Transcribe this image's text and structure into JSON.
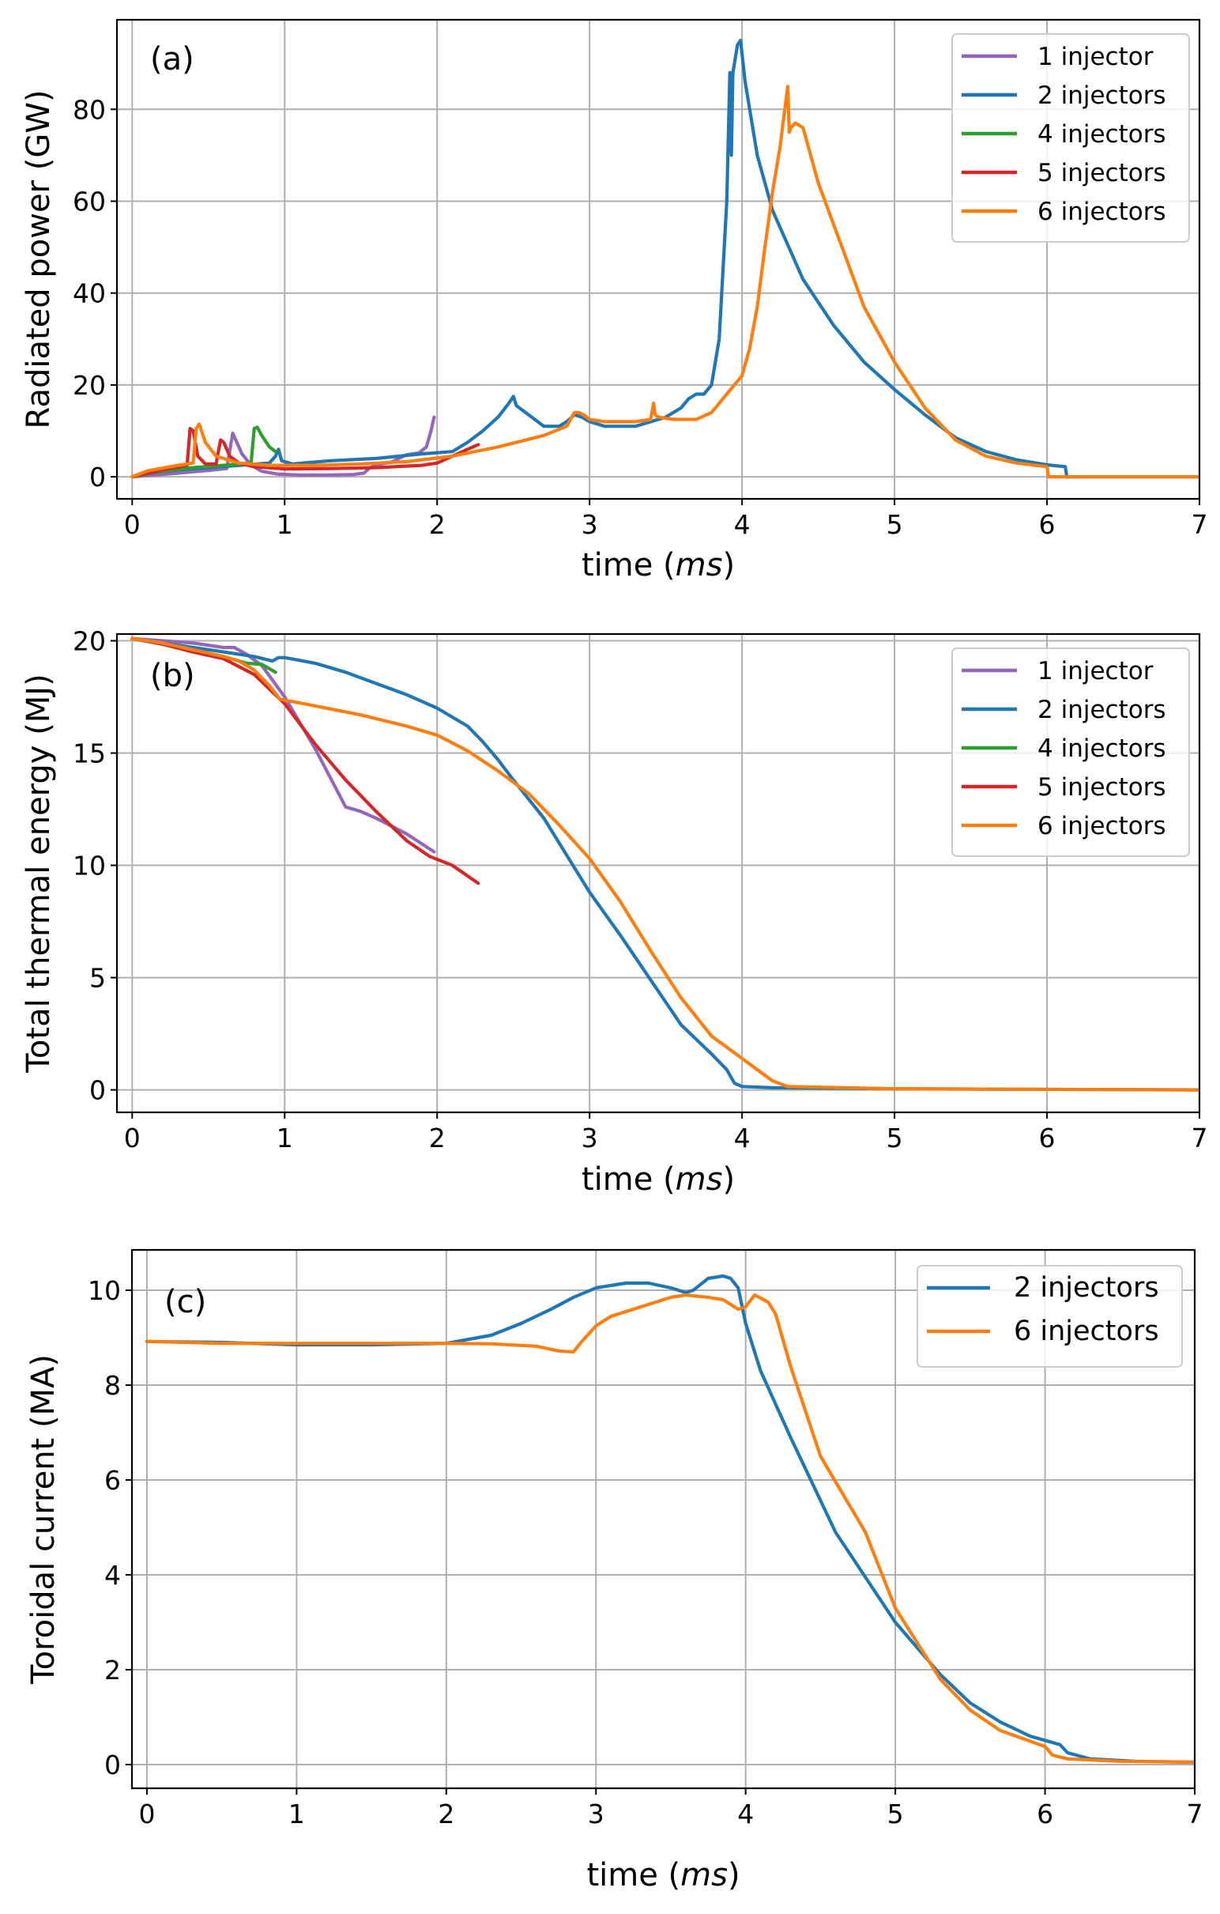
{
  "figure": {
    "panels": [
      "a",
      "b",
      "c"
    ]
  },
  "chart_data": [
    {
      "id": "a",
      "type": "line",
      "panel_tag": "(a)",
      "title": "",
      "xlabel": "time (ms)",
      "xlabel_parts": {
        "pre": "time (",
        "italic": "ms",
        "post": ")"
      },
      "ylabel": "Radiated power (GW)",
      "xlim": [
        -0.1,
        7
      ],
      "ylim": [
        -4.8,
        99.5
      ],
      "xticks": [
        0,
        1,
        2,
        3,
        4,
        5,
        6,
        7
      ],
      "yticks": [
        0,
        20,
        40,
        60,
        80
      ],
      "grid": true,
      "legend_position": "top-right",
      "series": [
        {
          "name": "1 injector",
          "color": "#9467bd",
          "x": [
            0,
            0.1,
            0.3,
            0.5,
            0.62,
            0.66,
            0.68,
            0.72,
            0.78,
            0.85,
            0.95,
            1.1,
            1.3,
            1.45,
            1.52,
            1.56,
            1.6,
            1.7,
            1.8,
            1.88,
            1.93,
            1.96,
            1.98
          ],
          "y": [
            0,
            0.3,
            0.8,
            1.4,
            1.8,
            9.5,
            8,
            5,
            2.5,
            1.2,
            0.6,
            0.4,
            0.4,
            0.5,
            0.8,
            2,
            2.6,
            3.2,
            4.8,
            5.2,
            6.5,
            10,
            13
          ]
        },
        {
          "name": "2 injectors",
          "color": "#1f77b4",
          "x": [
            0,
            0.1,
            0.3,
            0.5,
            0.7,
            0.9,
            0.94,
            0.96,
            0.98,
            1.05,
            1.3,
            1.6,
            1.9,
            2.1,
            2.2,
            2.3,
            2.4,
            2.47,
            2.5,
            2.52,
            2.6,
            2.7,
            2.8,
            2.85,
            2.9,
            2.95,
            3.0,
            3.1,
            3.3,
            3.5,
            3.6,
            3.65,
            3.7,
            3.75,
            3.8,
            3.85,
            3.9,
            3.92,
            3.93,
            3.94,
            3.95,
            3.97,
            3.99,
            4.02,
            4.1,
            4.2,
            4.4,
            4.6,
            4.8,
            5.0,
            5.2,
            5.4,
            5.6,
            5.8,
            6.0,
            6.12,
            6.13,
            7.0
          ],
          "y": [
            0,
            0.8,
            1.5,
            2.0,
            2.5,
            3.0,
            4.5,
            6,
            3.5,
            2.8,
            3.5,
            4.0,
            5.0,
            5.5,
            7.5,
            10,
            13,
            16,
            17.5,
            15.5,
            13.5,
            11,
            11,
            12,
            13.5,
            13,
            12,
            11,
            11,
            13,
            15,
            17,
            18,
            18,
            20,
            30,
            60,
            88,
            70,
            88,
            90,
            94,
            95,
            86,
            70,
            58,
            43,
            33,
            25,
            19,
            13.5,
            8.5,
            5.5,
            3.7,
            2.6,
            2.2,
            0,
            0
          ]
        },
        {
          "name": "4 injectors",
          "color": "#2ca02c",
          "x": [
            0,
            0.2,
            0.4,
            0.6,
            0.78,
            0.8,
            0.82,
            0.85,
            0.9,
            0.94
          ],
          "y": [
            0,
            1.2,
            2.0,
            2.5,
            3.0,
            10.5,
            10.8,
            9,
            6.5,
            5.5
          ]
        },
        {
          "name": "5 injectors",
          "color": "#d62728",
          "x": [
            0,
            0.2,
            0.36,
            0.38,
            0.4,
            0.43,
            0.48,
            0.55,
            0.58,
            0.6,
            0.64,
            0.7,
            0.8,
            1.0,
            1.3,
            1.6,
            1.9,
            2.0,
            2.1,
            2.2,
            2.27
          ],
          "y": [
            0,
            1.5,
            2.5,
            10.5,
            10.0,
            4.5,
            2.8,
            2.8,
            8.0,
            7.5,
            4.5,
            3.0,
            2.2,
            1.7,
            1.8,
            2.0,
            2.5,
            3.0,
            4.5,
            6.0,
            7.0
          ]
        },
        {
          "name": "6 injectors",
          "color": "#ff7f0e",
          "x": [
            0,
            0.1,
            0.3,
            0.4,
            0.42,
            0.44,
            0.48,
            0.55,
            0.7,
            0.9,
            1.2,
            1.5,
            1.8,
            2.1,
            2.4,
            2.7,
            2.85,
            2.9,
            2.93,
            2.96,
            3.0,
            3.1,
            3.3,
            3.4,
            3.42,
            3.43,
            3.45,
            3.55,
            3.7,
            3.8,
            3.9,
            4.0,
            4.05,
            4.1,
            4.15,
            4.2,
            4.25,
            4.28,
            4.3,
            4.31,
            4.32,
            4.35,
            4.4,
            4.45,
            4.5,
            4.6,
            4.7,
            4.8,
            5.0,
            5.2,
            5.4,
            5.6,
            5.8,
            6.0,
            6.01,
            7.0
          ],
          "y": [
            0,
            1.3,
            2.5,
            3.0,
            10.5,
            11.5,
            7.5,
            4.5,
            3.0,
            2.5,
            2.5,
            2.8,
            3.3,
            4.5,
            6.5,
            9.0,
            11,
            14,
            14,
            13.5,
            12.5,
            12,
            12,
            12.5,
            16,
            13.5,
            13,
            12.5,
            12.5,
            14,
            18,
            22,
            28,
            37,
            50,
            62,
            72,
            80,
            85,
            75,
            76,
            77,
            76,
            70,
            64,
            55,
            46,
            37,
            25,
            15,
            8,
            4.5,
            3.0,
            2.2,
            0,
            0
          ]
        }
      ]
    },
    {
      "id": "b",
      "type": "line",
      "panel_tag": "(b)",
      "title": "",
      "xlabel": "time (ms)",
      "xlabel_parts": {
        "pre": "time (",
        "italic": "ms",
        "post": ")"
      },
      "ylabel": "Total thermal energy (MJ)",
      "xlim": [
        -0.1,
        7
      ],
      "ylim": [
        -1.0,
        20.3
      ],
      "xticks": [
        0,
        1,
        2,
        3,
        4,
        5,
        6,
        7
      ],
      "yticks": [
        0,
        5,
        10,
        15,
        20
      ],
      "grid": true,
      "legend_position": "top-right",
      "series": [
        {
          "name": "1 injector",
          "color": "#9467bd",
          "x": [
            0,
            0.2,
            0.4,
            0.6,
            0.67,
            0.75,
            0.85,
            1.0,
            1.2,
            1.4,
            1.5,
            1.6,
            1.8,
            1.98
          ],
          "y": [
            20.1,
            20.0,
            19.9,
            19.7,
            19.7,
            19.4,
            18.9,
            17.5,
            15.2,
            12.6,
            12.4,
            12.1,
            11.4,
            10.6
          ]
        },
        {
          "name": "2 injectors",
          "color": "#1f77b4",
          "x": [
            0,
            0.2,
            0.4,
            0.6,
            0.8,
            0.92,
            0.96,
            1.0,
            1.2,
            1.4,
            1.6,
            1.8,
            2.0,
            2.2,
            2.3,
            2.4,
            2.5,
            2.7,
            2.8,
            3.0,
            3.2,
            3.4,
            3.6,
            3.8,
            3.9,
            3.95,
            4.0,
            4.2,
            5.0,
            7.0
          ],
          "y": [
            20.1,
            19.9,
            19.7,
            19.5,
            19.3,
            19.1,
            19.25,
            19.25,
            19.0,
            18.6,
            18.1,
            17.6,
            17.0,
            16.2,
            15.5,
            14.7,
            13.8,
            12.1,
            11.0,
            8.8,
            6.9,
            4.9,
            2.9,
            1.6,
            0.9,
            0.3,
            0.15,
            0.1,
            0.05,
            0.0
          ]
        },
        {
          "name": "4 injectors",
          "color": "#2ca02c",
          "x": [
            0,
            0.2,
            0.4,
            0.6,
            0.75,
            0.85,
            0.94
          ],
          "y": [
            20.1,
            19.85,
            19.55,
            19.3,
            19.0,
            18.95,
            18.6
          ]
        },
        {
          "name": "5 injectors",
          "color": "#d62728",
          "x": [
            0,
            0.2,
            0.4,
            0.6,
            0.8,
            1.0,
            1.2,
            1.4,
            1.6,
            1.8,
            1.95,
            2.1,
            2.27
          ],
          "y": [
            20.1,
            19.85,
            19.5,
            19.2,
            18.5,
            17.2,
            15.4,
            13.8,
            12.4,
            11.1,
            10.4,
            10.0,
            9.2
          ]
        },
        {
          "name": "6 injectors",
          "color": "#ff7f0e",
          "x": [
            0,
            0.2,
            0.4,
            0.6,
            0.7,
            0.8,
            0.9,
            0.97,
            1.2,
            1.5,
            1.8,
            2.0,
            2.2,
            2.4,
            2.6,
            2.8,
            3.0,
            3.2,
            3.4,
            3.6,
            3.8,
            4.0,
            4.1,
            4.2,
            4.3,
            5.0,
            7.0
          ],
          "y": [
            20.1,
            19.9,
            19.6,
            19.3,
            19.1,
            18.7,
            18.0,
            17.4,
            17.1,
            16.7,
            16.2,
            15.8,
            15.1,
            14.2,
            13.2,
            11.8,
            10.3,
            8.4,
            6.2,
            4.1,
            2.4,
            1.4,
            0.9,
            0.4,
            0.15,
            0.05,
            0.0
          ]
        }
      ]
    },
    {
      "id": "c",
      "type": "line",
      "panel_tag": "(c)",
      "title": "",
      "xlabel": "time (ms)",
      "xlabel_parts": {
        "pre": "time (",
        "italic": "ms",
        "post": ")"
      },
      "ylabel": "Toroidal current (MA)",
      "xlim": [
        -0.1,
        7
      ],
      "ylim": [
        -0.5,
        10.85
      ],
      "xticks": [
        0,
        1,
        2,
        3,
        4,
        5,
        6,
        7
      ],
      "yticks": [
        0,
        2,
        4,
        6,
        8,
        10
      ],
      "grid": true,
      "legend_position": "top-right",
      "series": [
        {
          "name": "2 injectors",
          "color": "#1f77b4",
          "x": [
            0,
            0.5,
            1.0,
            1.5,
            2.0,
            2.3,
            2.5,
            2.7,
            2.85,
            3.0,
            3.2,
            3.35,
            3.5,
            3.6,
            3.65,
            3.75,
            3.85,
            3.9,
            3.95,
            4.0,
            4.1,
            4.3,
            4.6,
            5.0,
            5.3,
            5.5,
            5.7,
            5.9,
            6.1,
            6.15,
            6.3,
            6.6,
            7.0
          ],
          "y": [
            8.92,
            8.9,
            8.85,
            8.85,
            8.88,
            9.05,
            9.3,
            9.6,
            9.85,
            10.05,
            10.15,
            10.15,
            10.05,
            9.95,
            10.0,
            10.25,
            10.3,
            10.25,
            10.05,
            9.3,
            8.3,
            6.9,
            4.9,
            3.0,
            1.9,
            1.3,
            0.9,
            0.6,
            0.42,
            0.25,
            0.12,
            0.07,
            0.05
          ]
        },
        {
          "name": "6 injectors",
          "color": "#ff7f0e",
          "x": [
            0,
            0.5,
            1.0,
            1.5,
            2.0,
            2.3,
            2.6,
            2.75,
            2.85,
            2.9,
            3.0,
            3.1,
            3.3,
            3.5,
            3.6,
            3.75,
            3.85,
            3.95,
            4.0,
            4.06,
            4.15,
            4.2,
            4.3,
            4.5,
            4.8,
            5.0,
            5.3,
            5.5,
            5.7,
            6.0,
            6.05,
            6.15,
            6.5,
            7.0
          ],
          "y": [
            8.92,
            8.88,
            8.88,
            8.88,
            8.88,
            8.87,
            8.82,
            8.72,
            8.7,
            8.9,
            9.25,
            9.45,
            9.65,
            9.85,
            9.9,
            9.85,
            9.8,
            9.6,
            9.65,
            9.9,
            9.75,
            9.5,
            8.4,
            6.5,
            4.9,
            3.3,
            1.8,
            1.15,
            0.72,
            0.38,
            0.2,
            0.12,
            0.07,
            0.05
          ]
        }
      ]
    }
  ]
}
